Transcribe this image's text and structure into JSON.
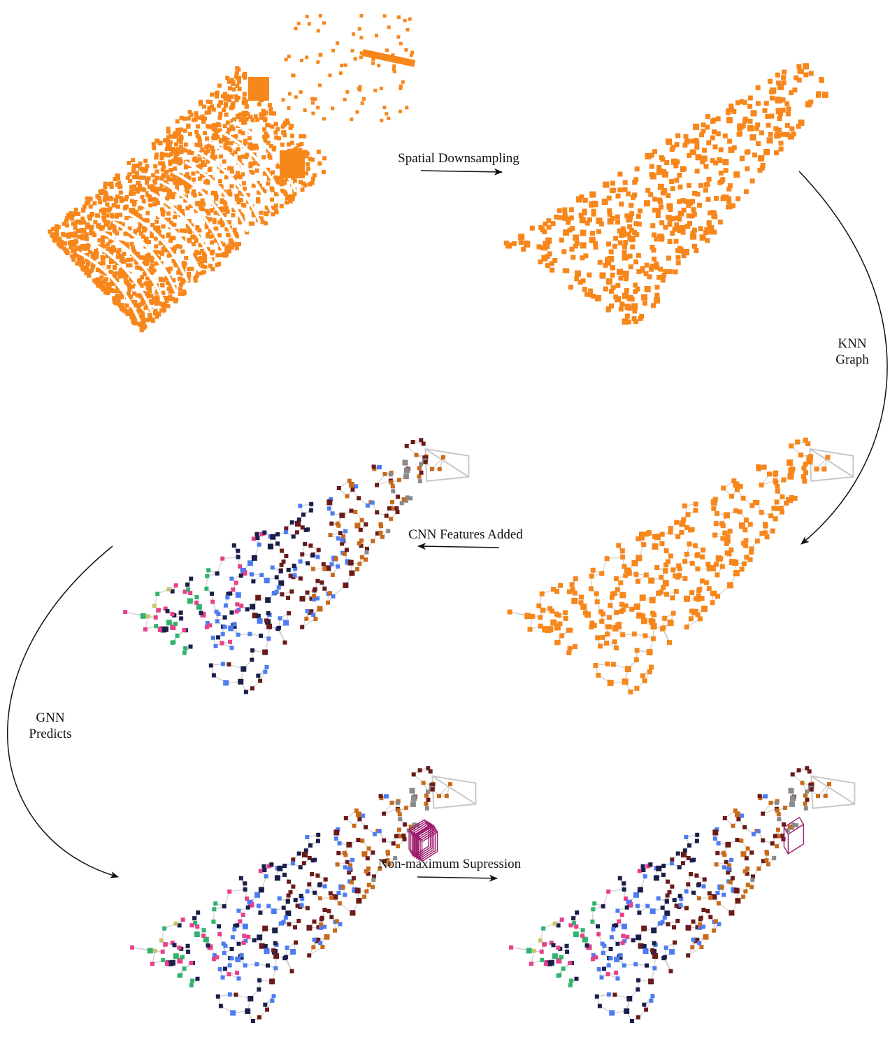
{
  "steps": {
    "spatial_downsampling": "Spatial Downsampling",
    "knn_line1": "KNN",
    "knn_line2": "Graph",
    "cnn_features_added": "CNN Features Added",
    "gnn_line1": "GNN",
    "gnn_line2": "Predicts",
    "nms": "Non-maximum Supression"
  },
  "panels": [
    {
      "id": "raw-point-cloud",
      "style": "dense"
    },
    {
      "id": "downsampled-point-cloud",
      "style": "sparse"
    },
    {
      "id": "knn-graph",
      "style": "graph-orange"
    },
    {
      "id": "cnn-features-graph",
      "style": "graph-colored"
    },
    {
      "id": "gnn-predictions",
      "style": "graph-colored-box"
    },
    {
      "id": "nms-result",
      "style": "graph-colored-box-single"
    }
  ],
  "colors": {
    "points": "#f7861b",
    "edges": "#c8c8c8",
    "box": "#9b1b6b",
    "palette": [
      "#c8c46e",
      "#2fb36e",
      "#e8408a",
      "#1a1f4a",
      "#4d7cf2",
      "#6b1a1a",
      "#c96a1a",
      "#8a8a8a",
      "#5fd0e8",
      "#c44ad4",
      "#7a5a9a",
      "#96c84a"
    ]
  }
}
